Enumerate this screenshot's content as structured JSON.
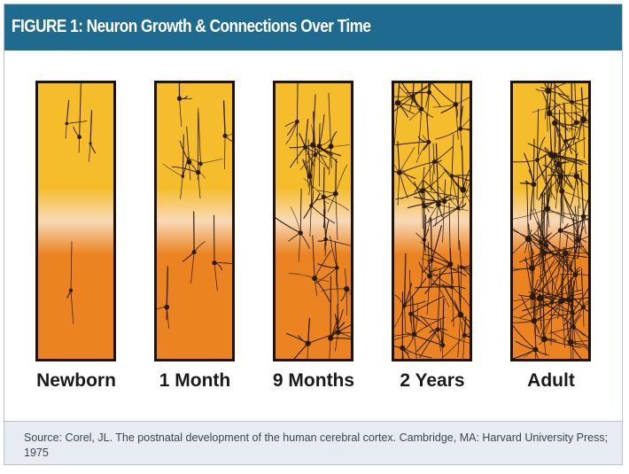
{
  "header": {
    "title": "FIGURE 1: Neuron Growth & Connections Over Time",
    "background_color": "#1f6a8f",
    "text_color": "#ffffff"
  },
  "panels": [
    {
      "label": "Newborn",
      "density": 1
    },
    {
      "label": "1 Month",
      "density": 2
    },
    {
      "label": "9 Months",
      "density": 3
    },
    {
      "label": "2 Years",
      "density": 4
    },
    {
      "label": "Adult",
      "density": 5
    }
  ],
  "colors": {
    "gradient_top": "#f5bd2c",
    "gradient_mid": "#f8d9b8",
    "gradient_bottom": "#eb8420",
    "neuron": "#2a1a10",
    "panel_border": "#1d1410"
  },
  "source": {
    "text": "Source: Corel, JL. The postnatal development of the human cerebral cortex. Cambridge, MA: Harvard University Press; 1975"
  }
}
